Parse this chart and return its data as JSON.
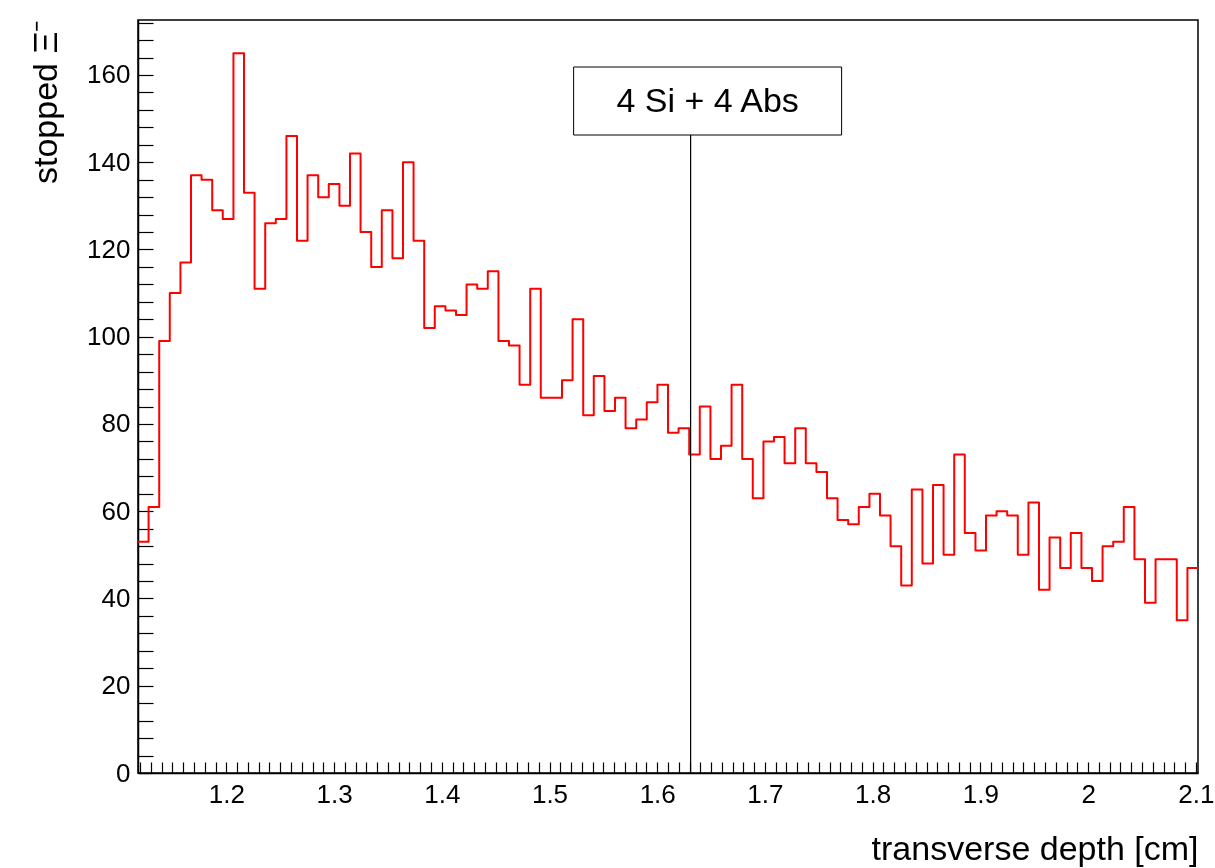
{
  "chart_data": {
    "type": "histogram",
    "xlabel": "transverse depth [cm]",
    "ylabel": "stopped Ξ⁻",
    "color": "#ff0000",
    "bins": [
      1.118,
      1.1278,
      1.1377,
      1.1475,
      1.1574,
      1.1672,
      1.177,
      1.1869,
      1.1967,
      1.2066,
      1.2164,
      1.2262,
      1.2361,
      1.2459,
      1.2558,
      1.2656,
      1.2754,
      1.2853,
      1.2951,
      1.305,
      1.3148,
      1.3246,
      1.3345,
      1.3443,
      1.3542,
      1.364,
      1.3738,
      1.3837,
      1.3935,
      1.4034,
      1.4132,
      1.423,
      1.4329,
      1.4427,
      1.4526,
      1.4624,
      1.4722,
      1.4821,
      1.4919,
      1.5018,
      1.5116,
      1.5214,
      1.5313,
      1.5411,
      1.551,
      1.5608,
      1.5706,
      1.5805,
      1.5903,
      1.6002,
      1.61,
      1.6198,
      1.6297,
      1.6395,
      1.6494,
      1.6592,
      1.669,
      1.6789,
      1.6887,
      1.6986,
      1.7084,
      1.7182,
      1.7281,
      1.7379,
      1.7478,
      1.7576,
      1.7674,
      1.7773,
      1.7871,
      1.797,
      1.8068,
      1.8166,
      1.8265,
      1.8363,
      1.8462,
      1.856,
      1.8658,
      1.8757,
      1.8855,
      1.8954,
      1.9052,
      1.915,
      1.9249,
      1.9347,
      1.9446,
      1.9544,
      1.9642,
      1.9741,
      1.9839,
      1.9938,
      2.0036,
      2.0134,
      2.0233,
      2.0331,
      2.043,
      2.0528,
      2.0626,
      2.0725,
      2.0823,
      2.0922,
      2.102
    ],
    "values": [
      53,
      61,
      99,
      110,
      117,
      137,
      136,
      129,
      127,
      165,
      133,
      111,
      126,
      127,
      146,
      122,
      137,
      132,
      135,
      130,
      142,
      124,
      116,
      129,
      118,
      140,
      122,
      102,
      107,
      106,
      105,
      112,
      111,
      115,
      99,
      98,
      89,
      111,
      86,
      86,
      90,
      104,
      82,
      91,
      83,
      86,
      79,
      81,
      85,
      89,
      78,
      79,
      73,
      84,
      72,
      75,
      89,
      72,
      63,
      76,
      77,
      71,
      79,
      71,
      69,
      63,
      58,
      57,
      61,
      64,
      59,
      52,
      43,
      65,
      48,
      66,
      50,
      73,
      55,
      51,
      59,
      60,
      59,
      50,
      62,
      42,
      54,
      47,
      55,
      47,
      44,
      52,
      53,
      61,
      49,
      39,
      49,
      49,
      35,
      47
    ],
    "xlim": [
      1.118,
      2.102
    ],
    "ylim": [
      0,
      172.6
    ],
    "xticks": [
      {
        "value": 1.12,
        "label": null
      },
      {
        "value": 1.13,
        "label": null
      },
      {
        "value": 1.14,
        "label": null
      },
      {
        "value": 1.15,
        "label": null
      },
      {
        "value": 1.16,
        "label": null
      },
      {
        "value": 1.17,
        "label": null
      },
      {
        "value": 1.18,
        "label": null
      },
      {
        "value": 1.19,
        "label": null
      },
      1.2,
      {
        "value": 1.21,
        "label": null
      },
      {
        "value": 1.22,
        "label": null
      },
      {
        "value": 1.23,
        "label": null
      },
      {
        "value": 1.24,
        "label": null
      },
      {
        "value": 1.25,
        "label": null
      },
      {
        "value": 1.26,
        "label": null
      },
      {
        "value": 1.27,
        "label": null
      },
      {
        "value": 1.28,
        "label": null
      },
      {
        "value": 1.29,
        "label": null
      },
      1.3,
      {
        "value": 1.31,
        "label": null
      },
      {
        "value": 1.32,
        "label": null
      },
      {
        "value": 1.33,
        "label": null
      },
      {
        "value": 1.34,
        "label": null
      },
      {
        "value": 1.35,
        "label": null
      },
      {
        "value": 1.36,
        "label": null
      },
      {
        "value": 1.37,
        "label": null
      },
      {
        "value": 1.38,
        "label": null
      },
      {
        "value": 1.39,
        "label": null
      },
      1.4,
      {
        "value": 1.41,
        "label": null
      },
      {
        "value": 1.42,
        "label": null
      },
      {
        "value": 1.43,
        "label": null
      },
      {
        "value": 1.44,
        "label": null
      },
      {
        "value": 1.45,
        "label": null
      },
      {
        "value": 1.46,
        "label": null
      },
      {
        "value": 1.47,
        "label": null
      },
      {
        "value": 1.48,
        "label": null
      },
      {
        "value": 1.49,
        "label": null
      },
      1.5,
      {
        "value": 1.51,
        "label": null
      },
      {
        "value": 1.52,
        "label": null
      },
      {
        "value": 1.53,
        "label": null
      },
      {
        "value": 1.54,
        "label": null
      },
      {
        "value": 1.55,
        "label": null
      },
      {
        "value": 1.56,
        "label": null
      },
      {
        "value": 1.57,
        "label": null
      },
      {
        "value": 1.58,
        "label": null
      },
      {
        "value": 1.59,
        "label": null
      },
      1.6,
      {
        "value": 1.61,
        "label": null
      },
      {
        "value": 1.62,
        "label": null
      },
      {
        "value": 1.63,
        "label": null
      },
      {
        "value": 1.64,
        "label": null
      },
      {
        "value": 1.65,
        "label": null
      },
      {
        "value": 1.66,
        "label": null
      },
      {
        "value": 1.67,
        "label": null
      },
      {
        "value": 1.68,
        "label": null
      },
      {
        "value": 1.69,
        "label": null
      },
      1.7,
      {
        "value": 1.71,
        "label": null
      },
      {
        "value": 1.72,
        "label": null
      },
      {
        "value": 1.73,
        "label": null
      },
      {
        "value": 1.74,
        "label": null
      },
      {
        "value": 1.75,
        "label": null
      },
      {
        "value": 1.76,
        "label": null
      },
      {
        "value": 1.77,
        "label": null
      },
      {
        "value": 1.78,
        "label": null
      },
      {
        "value": 1.79,
        "label": null
      },
      1.8,
      {
        "value": 1.81,
        "label": null
      },
      {
        "value": 1.82,
        "label": null
      },
      {
        "value": 1.83,
        "label": null
      },
      {
        "value": 1.84,
        "label": null
      },
      {
        "value": 1.85,
        "label": null
      },
      {
        "value": 1.86,
        "label": null
      },
      {
        "value": 1.87,
        "label": null
      },
      {
        "value": 1.88,
        "label": null
      },
      {
        "value": 1.89,
        "label": null
      },
      1.9,
      {
        "value": 1.91,
        "label": null
      },
      {
        "value": 1.92,
        "label": null
      },
      {
        "value": 1.93,
        "label": null
      },
      {
        "value": 1.94,
        "label": null
      },
      {
        "value": 1.95,
        "label": null
      },
      {
        "value": 1.96,
        "label": null
      },
      {
        "value": 1.97,
        "label": null
      },
      {
        "value": 1.98,
        "label": null
      },
      {
        "value": 1.99,
        "label": null
      },
      2,
      {
        "value": 2.01,
        "label": null
      },
      {
        "value": 2.02,
        "label": null
      },
      {
        "value": 2.03,
        "label": null
      },
      {
        "value": 2.04,
        "label": null
      },
      {
        "value": 2.05,
        "label": null
      },
      {
        "value": 2.06,
        "label": null
      },
      {
        "value": 2.07,
        "label": null
      },
      {
        "value": 2.08,
        "label": null
      },
      {
        "value": 2.09,
        "label": null
      },
      2.1
    ],
    "yticks": [
      0,
      {
        "value": 4,
        "label": null
      },
      {
        "value": 8,
        "label": null
      },
      {
        "value": 12,
        "label": null
      },
      {
        "value": 16,
        "label": null
      },
      20,
      {
        "value": 24,
        "label": null
      },
      {
        "value": 28,
        "label": null
      },
      {
        "value": 32,
        "label": null
      },
      {
        "value": 36,
        "label": null
      },
      40,
      {
        "value": 44,
        "label": null
      },
      {
        "value": 48,
        "label": null
      },
      {
        "value": 52,
        "label": null
      },
      {
        "value": 56,
        "label": null
      },
      60,
      {
        "value": 64,
        "label": null
      },
      {
        "value": 68,
        "label": null
      },
      {
        "value": 72,
        "label": null
      },
      {
        "value": 76,
        "label": null
      },
      80,
      {
        "value": 84,
        "label": null
      },
      {
        "value": 88,
        "label": null
      },
      {
        "value": 92,
        "label": null
      },
      {
        "value": 96,
        "label": null
      },
      100,
      {
        "value": 104,
        "label": null
      },
      {
        "value": 108,
        "label": null
      },
      {
        "value": 112,
        "label": null
      },
      {
        "value": 116,
        "label": null
      },
      120,
      {
        "value": 124,
        "label": null
      },
      {
        "value": 128,
        "label": null
      },
      {
        "value": 132,
        "label": null
      },
      {
        "value": 136,
        "label": null
      },
      140,
      {
        "value": 144,
        "label": null
      },
      {
        "value": 148,
        "label": null
      },
      {
        "value": 152,
        "label": null
      },
      {
        "value": 156,
        "label": null
      },
      160,
      {
        "value": 164,
        "label": null
      },
      {
        "value": 168,
        "label": null
      },
      {
        "value": 172,
        "label": null
      }
    ],
    "ref_lines": [
      {
        "axis": "x",
        "value": 1.631,
        "label": "4 Si + 4 Abs"
      }
    ]
  }
}
